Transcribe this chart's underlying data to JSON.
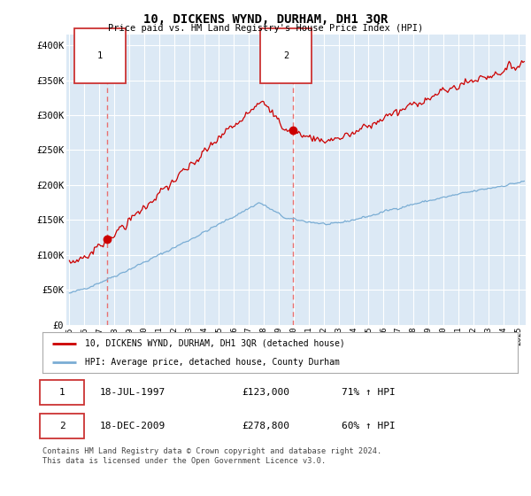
{
  "title": "10, DICKENS WYND, DURHAM, DH1 3QR",
  "subtitle": "Price paid vs. HM Land Registry's House Price Index (HPI)",
  "ytick_values": [
    0,
    50000,
    100000,
    150000,
    200000,
    250000,
    300000,
    350000,
    400000
  ],
  "ylim": [
    0,
    415000
  ],
  "xlim_start": 1994.8,
  "xlim_end": 2025.5,
  "bg_color": "#dce9f5",
  "grid_color": "#ffffff",
  "sale1_date": 1997.54,
  "sale1_price": 123000,
  "sale2_date": 2009.97,
  "sale2_price": 278800,
  "legend_label_red": "10, DICKENS WYND, DURHAM, DH1 3QR (detached house)",
  "legend_label_blue": "HPI: Average price, detached house, County Durham",
  "table_row1": [
    "1",
    "18-JUL-1997",
    "£123,000",
    "71% ↑ HPI"
  ],
  "table_row2": [
    "2",
    "18-DEC-2009",
    "£278,800",
    "60% ↑ HPI"
  ],
  "footnote": "Contains HM Land Registry data © Crown copyright and database right 2024.\nThis data is licensed under the Open Government Licence v3.0.",
  "red_color": "#cc0000",
  "blue_color": "#7aadd4",
  "dashed_color": "#e87070"
}
